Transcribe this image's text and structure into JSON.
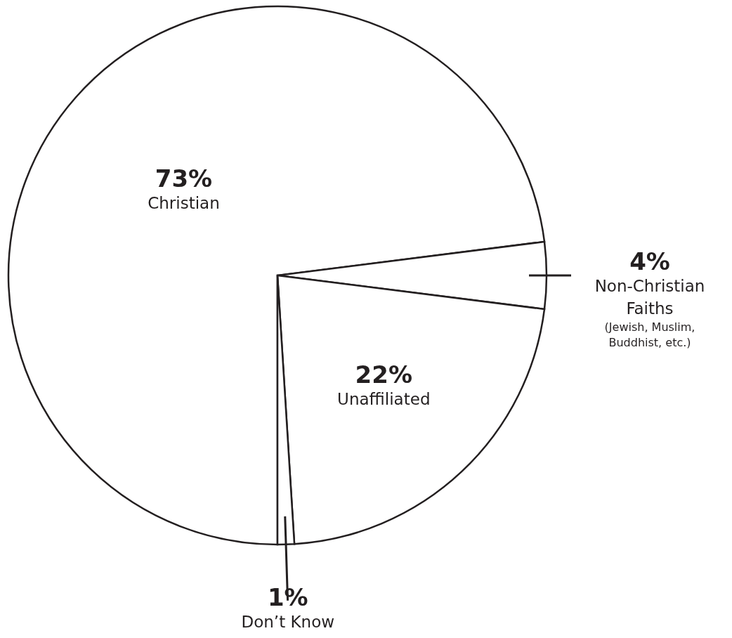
{
  "chart_data": {
    "type": "pie",
    "categories": [
      "Christian",
      "Non-Christian Faiths",
      "Unaffiliated",
      "Don’t Know"
    ],
    "values": [
      73,
      4,
      22,
      1
    ],
    "colors": [
      "#ffffff",
      "#ffffff",
      "#ffffff",
      "#ffffff"
    ],
    "value_labels": [
      "73%",
      "4%",
      "22%",
      "1%"
    ],
    "annotations": [
      "(Jewish, Muslim, Buddhist, etc.)"
    ]
  }
}
